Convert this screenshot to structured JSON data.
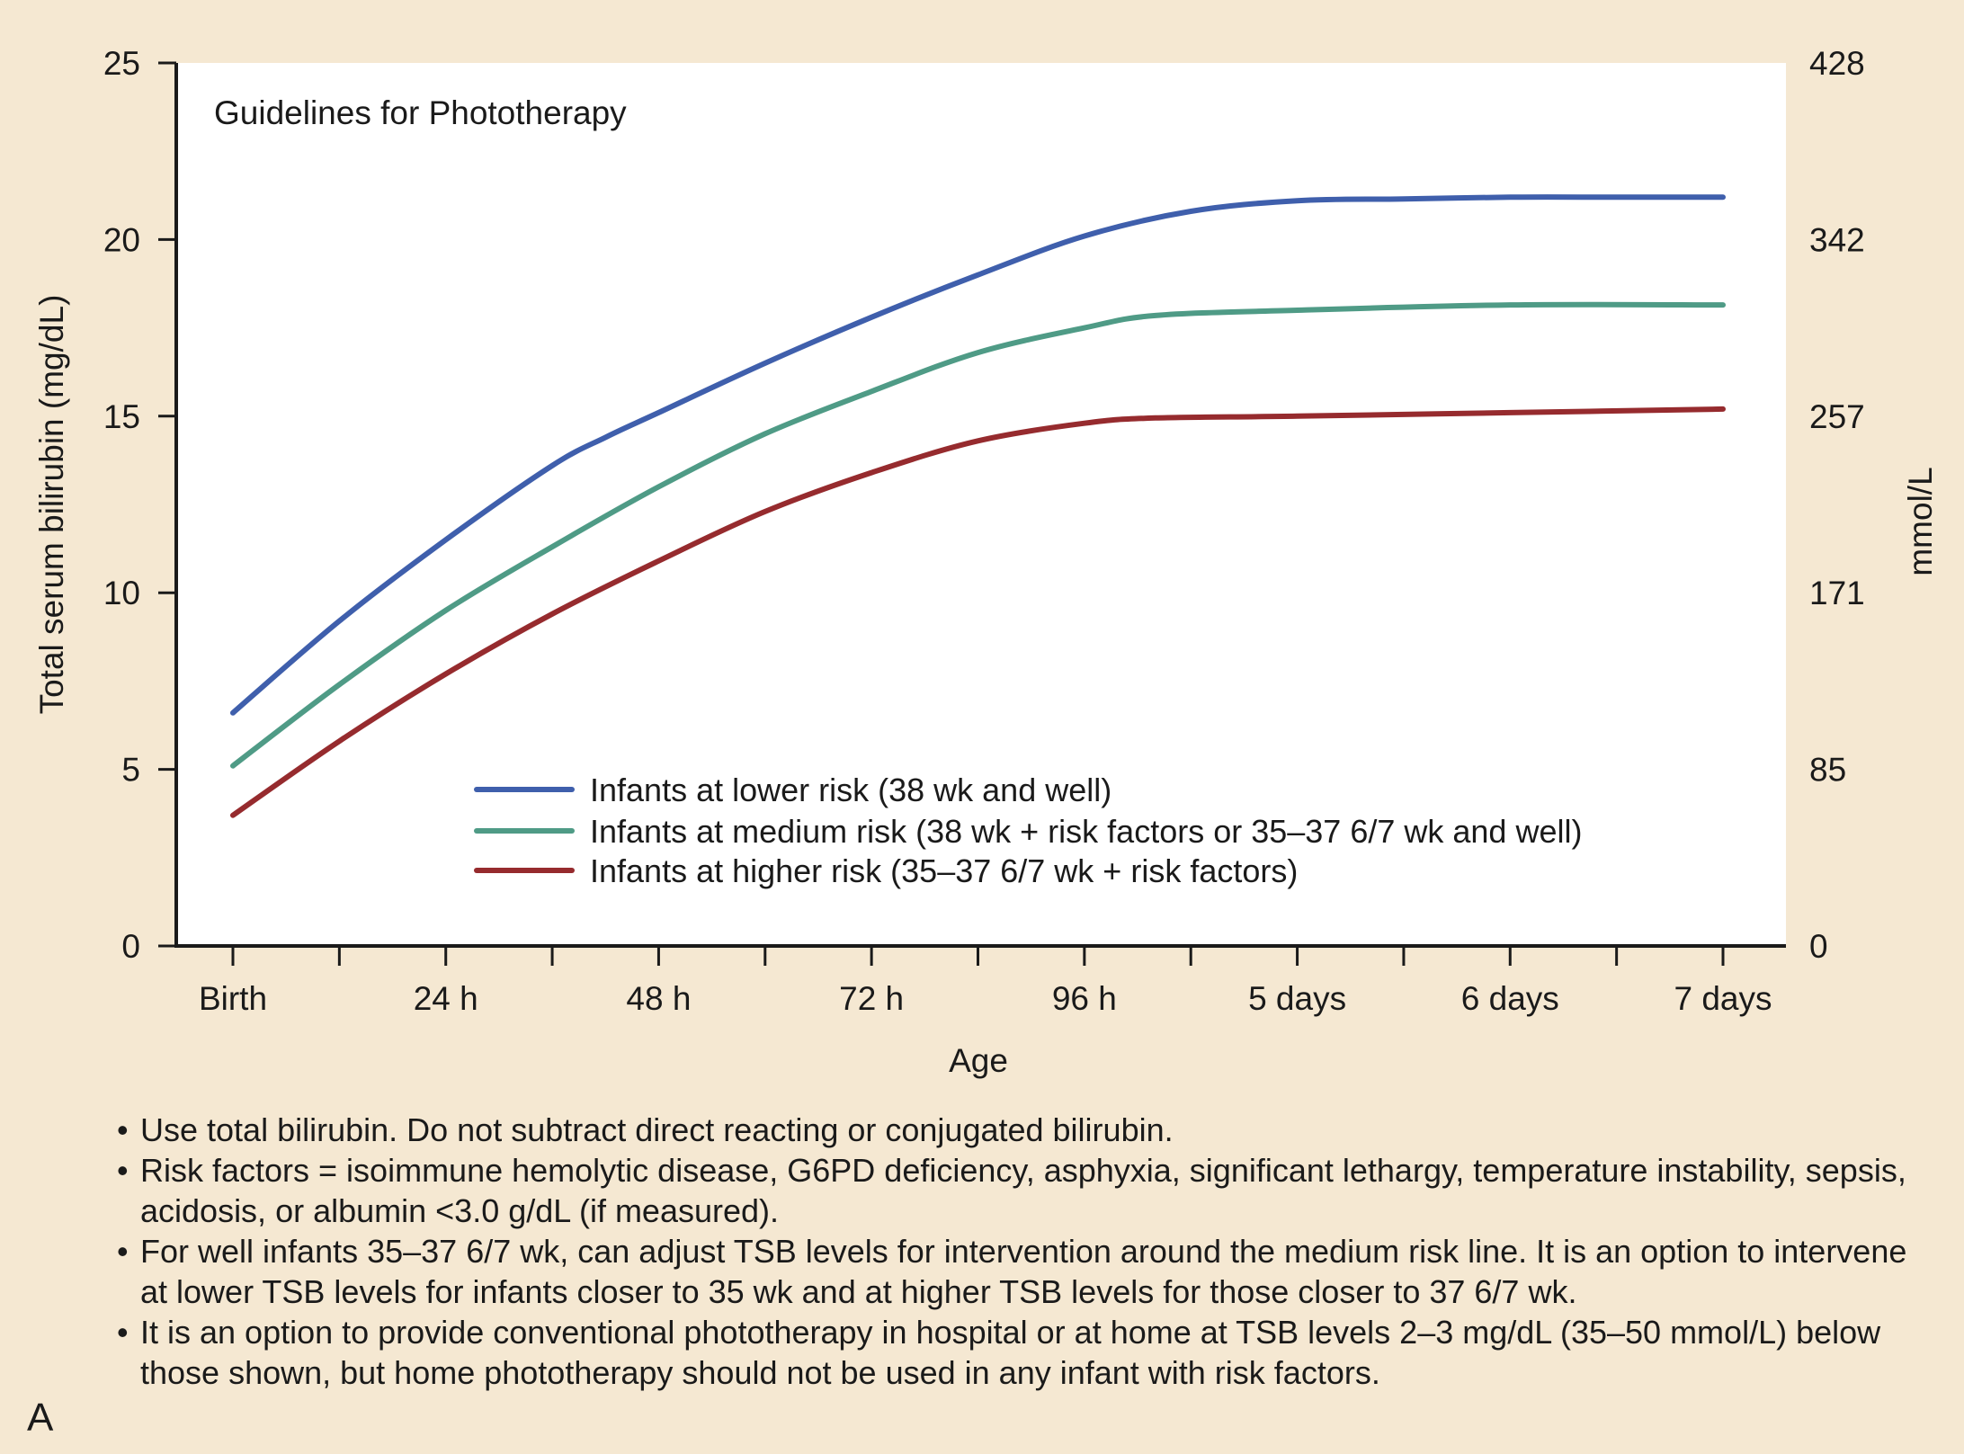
{
  "chart_data": {
    "type": "line",
    "title": "Guidelines for Phototherapy",
    "xlabel": "Age",
    "ylabel": "Total serum bilirubin (mg/dL)",
    "y2label": "mmol/L",
    "categories": [
      "Birth",
      "24 h",
      "48 h",
      "72 h",
      "96 h",
      "5 days",
      "6 days",
      "7 days"
    ],
    "x_hours": [
      0,
      24,
      48,
      72,
      96,
      120,
      144,
      168
    ],
    "xlim": [
      -6,
      174
    ],
    "ylim": [
      0,
      25
    ],
    "yticks": [
      0,
      5,
      10,
      15,
      20,
      25
    ],
    "ytick_labels": [
      "0",
      "5",
      "10",
      "15",
      "20",
      "25"
    ],
    "y2ticks": [
      0,
      5,
      10,
      15,
      20,
      25
    ],
    "y2tick_labels": [
      "0",
      "85",
      "171",
      "257",
      "342",
      "428"
    ],
    "grid": false,
    "legend_position": "bottom-center",
    "series": [
      {
        "name": "Infants at lower risk (38 wk and well)",
        "color": "#3f5fac",
        "x": [
          0,
          12,
          24,
          36,
          42,
          48,
          60,
          72,
          84,
          96,
          108,
          120,
          132,
          144,
          156,
          168
        ],
        "y": [
          6.6,
          9.2,
          11.5,
          13.6,
          14.4,
          15.1,
          16.5,
          17.8,
          19.0,
          20.1,
          20.8,
          21.1,
          21.15,
          21.2,
          21.2,
          21.2
        ]
      },
      {
        "name": "Infants at medium risk (38 wk + risk factors or 35–37 6/7 wk and well)",
        "color": "#4f9b86",
        "x": [
          0,
          12,
          24,
          36,
          48,
          60,
          72,
          84,
          96,
          104,
          120,
          144,
          168
        ],
        "y": [
          5.1,
          7.4,
          9.5,
          11.3,
          13.0,
          14.5,
          15.7,
          16.8,
          17.5,
          17.85,
          18.0,
          18.15,
          18.15
        ]
      },
      {
        "name": "Infants at higher risk (35–37 6/7 wk + risk factors)",
        "color": "#962b2e",
        "x": [
          0,
          12,
          24,
          36,
          48,
          60,
          72,
          84,
          96,
          104,
          120,
          144,
          168
        ],
        "y": [
          3.7,
          5.8,
          7.7,
          9.4,
          10.9,
          12.3,
          13.4,
          14.3,
          14.8,
          14.95,
          15.0,
          15.1,
          15.2
        ]
      }
    ]
  },
  "notes": [
    "Use total bilirubin.  Do not subtract direct reacting or conjugated bilirubin.",
    "Risk factors = isoimmune hemolytic disease, G6PD deficiency, asphyxia, significant lethargy, temperature instability, sepsis, acidosis, or albumin <3.0 g/dL (if measured).",
    "For well infants 35–37 6/7 wk, can adjust TSB levels for intervention around the medium risk line.  It is an option to intervene at lower TSB levels for infants closer to 35 wk and at higher TSB levels for those closer to 37 6/7 wk.",
    "It is an option to provide conventional phototherapy in hospital or at home at TSB levels 2–3 mg/dL (35–50 mmol/L) below those shown, but home phototherapy should not be used in any infant with risk factors."
  ],
  "panel_label": "A"
}
